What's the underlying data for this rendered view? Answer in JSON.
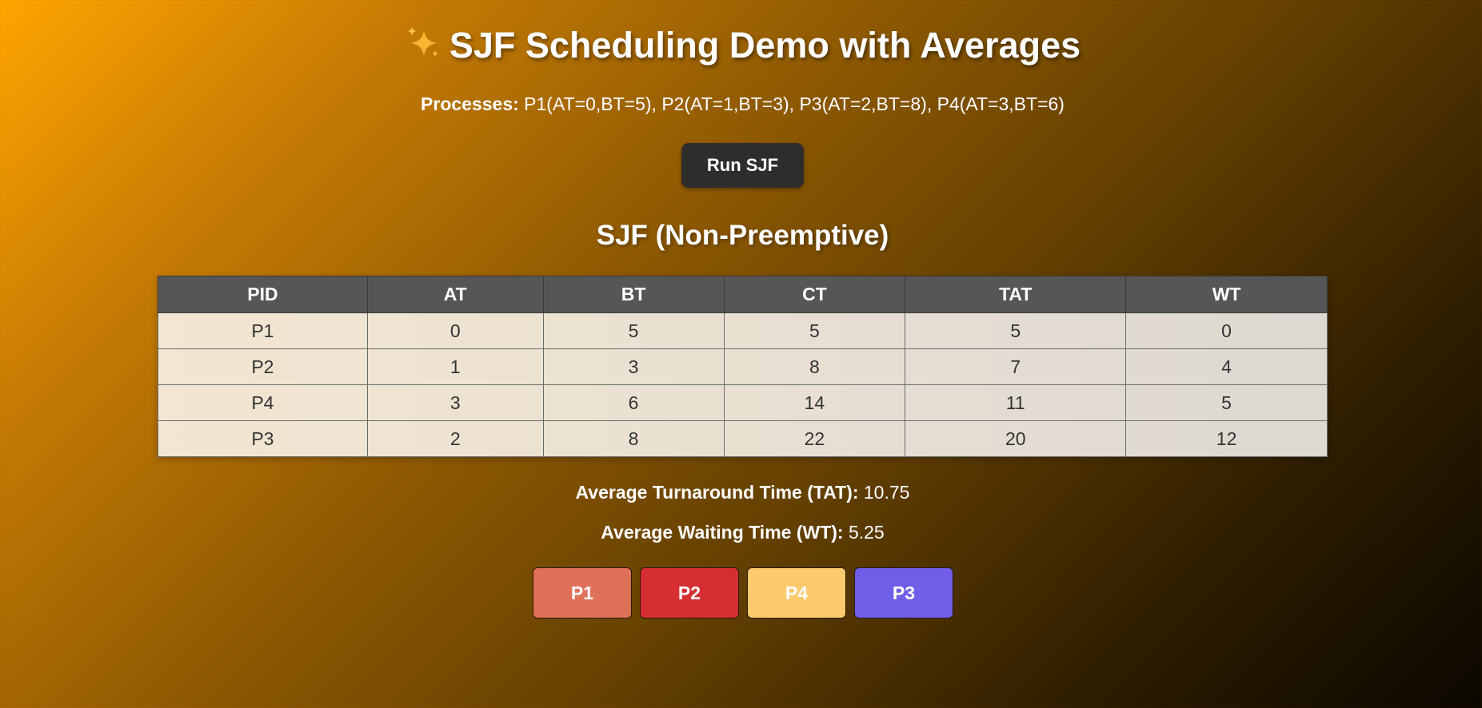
{
  "header": {
    "title": "SJF Scheduling Demo with Averages",
    "title_icon": "sparkles-icon"
  },
  "processes": {
    "label": "Processes:",
    "value": "P1(AT=0,BT=5), P2(AT=1,BT=3), P3(AT=2,BT=8), P4(AT=3,BT=6)"
  },
  "controls": {
    "run_label": "Run SJF"
  },
  "results": {
    "heading": "SJF (Non-Preemptive)",
    "columns": [
      "PID",
      "AT",
      "BT",
      "CT",
      "TAT",
      "WT"
    ],
    "rows": [
      [
        "P1",
        "0",
        "5",
        "5",
        "5",
        "0"
      ],
      [
        "P2",
        "1",
        "3",
        "8",
        "7",
        "4"
      ],
      [
        "P4",
        "3",
        "6",
        "14",
        "11",
        "5"
      ],
      [
        "P3",
        "2",
        "8",
        "22",
        "20",
        "12"
      ]
    ]
  },
  "averages": {
    "tat_label": "Average Turnaround Time (TAT):",
    "tat_value": "10.75",
    "wt_label": "Average Waiting Time (WT):",
    "wt_value": "5.25"
  },
  "gantt": {
    "blocks": [
      {
        "label": "P1",
        "color": "#e07159"
      },
      {
        "label": "P2",
        "color": "#d62f32"
      },
      {
        "label": "P4",
        "color": "#fdca6e"
      },
      {
        "label": "P3",
        "color": "#705ee8"
      }
    ]
  },
  "colors": {
    "background_start": "#ffa500",
    "background_end": "#0b0700",
    "table_header": "#565656",
    "button": "#2f2d2b"
  }
}
